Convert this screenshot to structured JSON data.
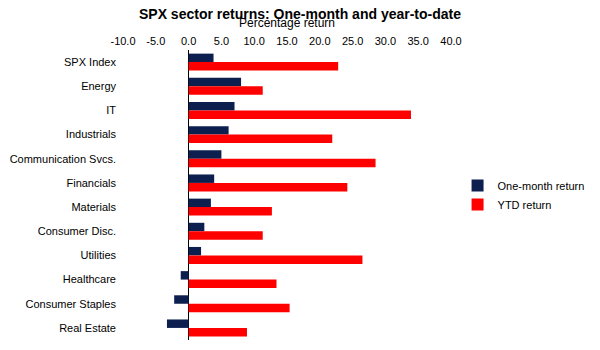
{
  "chart_data": {
    "type": "bar",
    "orientation": "horizontal",
    "title": "SPX sector returns: One-month and year-to-date",
    "xlabel": "Percentage return",
    "categories": [
      "SPX Index",
      "Energy",
      "IT",
      "Industrials",
      "Communication Svcs.",
      "Financials",
      "Materials",
      "Consumer Disc.",
      "Utilities",
      "Healthcare",
      "Consumer Staples",
      "Real Estate"
    ],
    "series": [
      {
        "name": "One-month return",
        "color": "#0d1f4f",
        "values": [
          3.8,
          8.0,
          7.0,
          6.1,
          5.0,
          3.9,
          3.4,
          2.4,
          1.9,
          -1.2,
          -2.2,
          -3.3
        ]
      },
      {
        "name": "YTD return",
        "color": "#ff0000",
        "values": [
          22.8,
          11.3,
          33.9,
          21.9,
          28.5,
          24.2,
          12.7,
          11.3,
          26.5,
          13.4,
          15.4,
          8.9
        ]
      }
    ],
    "xlim": [
      -10,
      40
    ],
    "xticks": [
      {
        "value": -10,
        "label": "-10.0"
      },
      {
        "value": -5,
        "label": "-5.0"
      },
      {
        "value": 0,
        "label": "0.0"
      },
      {
        "value": 5,
        "label": "5.0"
      },
      {
        "value": 10,
        "label": "10.0"
      },
      {
        "value": 15,
        "label": "15.0"
      },
      {
        "value": 20,
        "label": "20.0"
      },
      {
        "value": 25,
        "label": "25.0"
      },
      {
        "value": 30,
        "label": "30.0"
      },
      {
        "value": 35,
        "label": "35.0"
      },
      {
        "value": 40,
        "label": "40.0"
      }
    ],
    "grid": false,
    "legend": "right"
  }
}
